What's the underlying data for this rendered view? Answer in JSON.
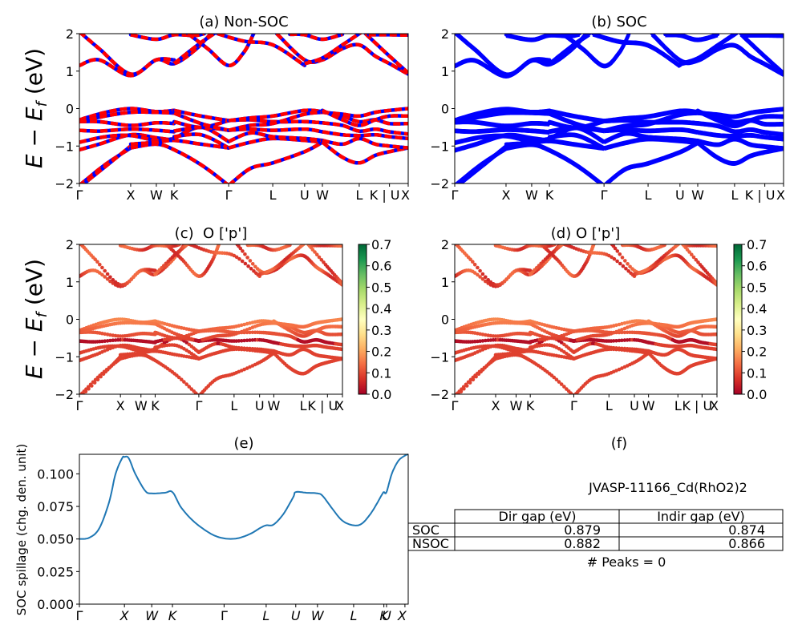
{
  "figure": {
    "material": "JVASP-11166_Cd(RhO2)2"
  },
  "chart_data": [
    {
      "id": "a",
      "type": "line",
      "title": "(a) Non-SOC",
      "ylabel": "E − E_f (eV)",
      "ylabel_main": "E − E",
      "ylabel_sub": "f",
      "ylabel_unit": " (eV)",
      "ylim": [
        -2,
        2
      ],
      "yticks": [
        "2",
        "1",
        "0",
        "−1",
        "−2"
      ],
      "ytick_values": [
        2,
        1,
        0,
        -1,
        -2
      ],
      "kpath_labels": [
        "Γ",
        "X",
        "W",
        "K",
        "Γ",
        "L",
        "U",
        "W",
        "L",
        "K | U",
        "X"
      ],
      "kpath_positions": [
        0,
        0.156,
        0.234,
        0.288,
        0.454,
        0.588,
        0.685,
        0.739,
        0.851,
        0.943,
        1.0
      ],
      "series_colors": [
        "#ff0000",
        "#0000ff"
      ],
      "style": "dashed red over blue",
      "bands": [
        {
          "x": [
            0,
            0.078,
            0.156
          ],
          "y": [
            -2.05,
            -1.5,
            -1.05
          ]
        },
        {
          "x": [
            0,
            0.1,
            0.156
          ],
          "y": [
            -2.1,
            -1.4,
            -1.0
          ]
        },
        {
          "x": [
            0,
            0.06,
            0.156,
            0.234,
            0.288
          ],
          "y": [
            -1.1,
            -0.95,
            -0.7,
            -0.78,
            -0.85
          ]
        },
        {
          "x": [
            0,
            0.08,
            0.156,
            0.234,
            0.288
          ],
          "y": [
            -0.9,
            -0.75,
            -0.72,
            -0.85,
            -0.8
          ]
        },
        {
          "x": [
            0,
            0.06,
            0.156,
            0.234,
            0.288
          ],
          "y": [
            -0.58,
            -0.6,
            -0.55,
            -0.58,
            -0.62
          ]
        },
        {
          "x": [
            0,
            0.06,
            0.156,
            0.234,
            0.288
          ],
          "y": [
            -0.35,
            -0.35,
            -0.45,
            -0.38,
            -0.4
          ]
        },
        {
          "x": [
            0,
            0.08,
            0.156,
            0.234,
            0.288
          ],
          "y": [
            -0.3,
            -0.1,
            0.0,
            -0.08,
            -0.05
          ]
        },
        {
          "x": [
            0,
            0.078,
            0.156,
            0.234,
            0.288
          ],
          "y": [
            -0.35,
            -0.2,
            -0.1,
            -0.1,
            -0.12
          ]
        },
        {
          "x": [
            0.156,
            0.234,
            0.288,
            0.37,
            0.454
          ],
          "y": [
            -1.05,
            -0.95,
            -1.1,
            -1.5,
            -2.05
          ]
        },
        {
          "x": [
            0.156,
            0.234,
            0.288,
            0.37,
            0.454
          ],
          "y": [
            -0.95,
            -0.9,
            -0.85,
            -0.95,
            -1.05
          ]
        },
        {
          "x": [
            0.288,
            0.37,
            0.454
          ],
          "y": [
            -0.8,
            -0.5,
            -0.88
          ]
        },
        {
          "x": [
            0.288,
            0.37,
            0.454
          ],
          "y": [
            -0.6,
            -0.5,
            -0.58
          ]
        },
        {
          "x": [
            0.288,
            0.37,
            0.454
          ],
          "y": [
            -0.35,
            -0.5,
            -0.32
          ]
        },
        {
          "x": [
            0.288,
            0.37,
            0.454
          ],
          "y": [
            -0.05,
            -0.2,
            -0.32
          ]
        },
        {
          "x": [
            0.288,
            0.37,
            0.454
          ],
          "y": [
            -0.12,
            -0.4,
            -0.58
          ]
        },
        {
          "x": [
            0.288,
            0.37,
            0.454
          ],
          "y": [
            -0.75,
            -0.7,
            -1.05
          ]
        },
        {
          "x": [
            0.454,
            0.52,
            0.588,
            0.685,
            0.739
          ],
          "y": [
            -2.05,
            -1.6,
            -1.45,
            -1.15,
            -0.9
          ]
        },
        {
          "x": [
            0.454,
            0.52,
            0.588,
            0.685,
            0.739
          ],
          "y": [
            -1.05,
            -0.9,
            -0.8,
            -0.85,
            -0.9
          ]
        },
        {
          "x": [
            0.454,
            0.52,
            0.588,
            0.685,
            0.739
          ],
          "y": [
            -0.88,
            -0.65,
            -0.75,
            -0.8,
            -0.85
          ]
        },
        {
          "x": [
            0.454,
            0.52,
            0.588,
            0.685,
            0.739
          ],
          "y": [
            -0.58,
            -0.55,
            -0.58,
            -0.55,
            -0.62
          ]
        },
        {
          "x": [
            0.454,
            0.52,
            0.588,
            0.685,
            0.739
          ],
          "y": [
            -0.32,
            -0.3,
            -0.35,
            -0.35,
            -0.38
          ]
        },
        {
          "x": [
            0.454,
            0.52,
            0.588,
            0.685,
            0.739
          ],
          "y": [
            -0.32,
            -0.25,
            -0.2,
            -0.05,
            -0.08
          ]
        },
        {
          "x": [
            0.454,
            0.52,
            0.588,
            0.685,
            0.739
          ],
          "y": [
            -0.58,
            -0.45,
            -0.4,
            -0.15,
            -0.1
          ]
        },
        {
          "x": [
            0.739,
            0.8,
            0.851,
            0.9,
            0.943,
            1.0
          ],
          "y": [
            -0.9,
            -1.3,
            -1.45,
            -1.25,
            -1.15,
            -1.05
          ]
        },
        {
          "x": [
            0.739,
            0.8,
            0.851,
            0.9,
            0.943,
            1.0
          ],
          "y": [
            -0.85,
            -0.95,
            -0.8,
            -0.95,
            -1.0,
            -1.05
          ]
        },
        {
          "x": [
            0.739,
            0.8,
            0.851,
            0.9,
            0.943,
            1.0
          ],
          "y": [
            -0.62,
            -0.7,
            -0.72,
            -0.7,
            -0.75,
            -0.8
          ]
        },
        {
          "x": [
            0.739,
            0.8,
            0.851,
            0.9,
            0.943,
            1.0
          ],
          "y": [
            -0.38,
            -0.45,
            -0.6,
            -0.55,
            -0.62,
            -0.68
          ]
        },
        {
          "x": [
            0.739,
            0.8,
            0.851,
            0.9,
            0.943,
            1.0
          ],
          "y": [
            -0.08,
            -0.2,
            -0.35,
            -0.3,
            -0.4,
            -0.4
          ]
        },
        {
          "x": [
            0.739,
            0.8,
            0.851,
            0.9,
            0.943,
            1.0
          ],
          "y": [
            -0.1,
            -0.15,
            -0.2,
            -0.1,
            -0.05,
            0.0
          ]
        },
        {
          "x": [
            0.739,
            0.8,
            0.851,
            0.9,
            0.943,
            1.0
          ],
          "y": [
            -0.05,
            -0.3,
            -0.45,
            -0.3,
            -0.2,
            -0.2
          ]
        },
        {
          "x": [
            0,
            0.06,
            0.156,
            0.234,
            0.288,
            0.35,
            0.4
          ],
          "y": [
            1.15,
            1.3,
            0.88,
            1.3,
            1.2,
            1.55,
            2.0
          ]
        },
        {
          "x": [
            0,
            0.06,
            0.156,
            0.234,
            0.288
          ],
          "y": [
            2.05,
            1.6,
            0.92,
            1.3,
            1.3
          ]
        },
        {
          "x": [
            0.156,
            0.234,
            0.288,
            0.35,
            0.38
          ],
          "y": [
            1.97,
            1.85,
            1.97,
            1.95,
            2.0
          ]
        },
        {
          "x": [
            0.288,
            0.36,
            0.41
          ],
          "y": [
            1.2,
            1.7,
            2.0
          ]
        },
        {
          "x": [
            0.33,
            0.39,
            0.454,
            0.5,
            0.53
          ],
          "y": [
            2.0,
            1.6,
            1.15,
            1.5,
            2.0
          ]
        },
        {
          "x": [
            0.42,
            0.5,
            0.588,
            0.685
          ],
          "y": [
            2.0,
            1.8,
            1.7,
            1.15
          ]
        },
        {
          "x": [
            0.6,
            0.685,
            0.739,
            0.8,
            0.851,
            0.9,
            0.943,
            1.0
          ],
          "y": [
            2.0,
            1.3,
            1.3,
            1.6,
            1.7,
            1.4,
            1.2,
            0.92
          ]
        },
        {
          "x": [
            0.685,
            0.739,
            0.8,
            0.86
          ],
          "y": [
            1.2,
            1.35,
            1.7,
            2.05
          ]
        },
        {
          "x": [
            0.64,
            0.685,
            0.739,
            0.8
          ],
          "y": [
            1.98,
            1.97,
            1.85,
            1.98
          ]
        },
        {
          "x": [
            0.87,
            0.943,
            1.0
          ],
          "y": [
            2.0,
            1.4,
            0.95
          ]
        },
        {
          "x": [
            0.88,
            0.943,
            1.0
          ],
          "y": [
            1.97,
            1.97,
            1.96
          ]
        }
      ]
    },
    {
      "id": "b",
      "type": "line",
      "title": "(b) SOC",
      "ylim": [
        -2,
        2
      ],
      "yticks": [
        "2",
        "1",
        "0",
        "−1",
        "−2"
      ],
      "ytick_values": [
        2,
        1,
        0,
        -1,
        -2
      ],
      "kpath_labels": [
        "Γ",
        "X",
        "W",
        "K",
        "Γ",
        "L",
        "U",
        "W",
        "L",
        "K | U",
        "X"
      ],
      "kpath_positions": [
        0,
        0.156,
        0.234,
        0.288,
        0.454,
        0.588,
        0.685,
        0.739,
        0.851,
        0.943,
        1.0
      ],
      "series_colors": [
        "#0000ff"
      ],
      "bands_from": "a"
    },
    {
      "id": "c",
      "type": "scatter",
      "title": "(c)  O ['p']",
      "ylabel_main": "E − E",
      "ylabel_sub": "f",
      "ylabel_unit": " (eV)",
      "ylim": [
        -2,
        2
      ],
      "yticks": [
        "2",
        "1",
        "0",
        "−1",
        "−2"
      ],
      "ytick_values": [
        2,
        1,
        0,
        -1,
        -2
      ],
      "kpath_labels": [
        "Γ",
        "X",
        "W",
        "K",
        "Γ",
        "L",
        "U",
        "W",
        "L",
        "K | U",
        "X"
      ],
      "kpath_positions": [
        0,
        0.156,
        0.234,
        0.288,
        0.454,
        0.588,
        0.685,
        0.739,
        0.851,
        0.943,
        1.0
      ],
      "colorbar": {
        "cmap": "RdYlGn",
        "range": [
          0.0,
          0.7
        ],
        "ticks": [
          "0.0",
          "0.1",
          "0.2",
          "0.3",
          "0.4",
          "0.5",
          "0.6",
          "0.7"
        ],
        "tick_values": [
          0.0,
          0.1,
          0.2,
          0.3,
          0.4,
          0.5,
          0.6,
          0.7
        ]
      },
      "weight_range": [
        0.0,
        0.25
      ],
      "bands_from": "a"
    },
    {
      "id": "d",
      "type": "scatter",
      "title": "(d) O ['p']",
      "ylim": [
        -2,
        2
      ],
      "yticks": [
        "2",
        "1",
        "0",
        "−1",
        "−2"
      ],
      "ytick_values": [
        2,
        1,
        0,
        -1,
        -2
      ],
      "kpath_labels": [
        "Γ",
        "X",
        "W",
        "K",
        "Γ",
        "L",
        "U",
        "W",
        "L",
        "K | U",
        "X"
      ],
      "kpath_positions": [
        0,
        0.156,
        0.234,
        0.288,
        0.454,
        0.588,
        0.685,
        0.739,
        0.851,
        0.943,
        1.0
      ],
      "colorbar": {
        "cmap": "RdYlGn",
        "range": [
          0.0,
          0.7
        ],
        "ticks": [
          "0.0",
          "0.1",
          "0.2",
          "0.3",
          "0.4",
          "0.5",
          "0.6",
          "0.7"
        ],
        "tick_values": [
          0.0,
          0.1,
          0.2,
          0.3,
          0.4,
          0.5,
          0.6,
          0.7
        ]
      },
      "weight_range": [
        0.0,
        0.25
      ],
      "bands_from": "a"
    },
    {
      "id": "e",
      "type": "line",
      "title": "(e)",
      "ylabel": "SOC spillage (chg. den. unit)",
      "ylim": [
        0,
        0.115
      ],
      "yticks": [
        "0.000",
        "0.025",
        "0.050",
        "0.075",
        "0.100"
      ],
      "ytick_values": [
        0.0,
        0.025,
        0.05,
        0.075,
        0.1
      ],
      "kpath_labels": [
        "Γ",
        "X",
        "W",
        "K",
        "Γ",
        "L",
        "U",
        "W",
        "L",
        "K",
        "U",
        "X"
      ],
      "kpath_positions": [
        0,
        0.137,
        0.22,
        0.283,
        0.44,
        0.568,
        0.658,
        0.724,
        0.834,
        0.926,
        0.934,
        0.99
      ],
      "line_color": "#1f77b4",
      "x": [
        0,
        0.03,
        0.06,
        0.09,
        0.11,
        0.13,
        0.137,
        0.15,
        0.17,
        0.2,
        0.22,
        0.26,
        0.283,
        0.31,
        0.35,
        0.4,
        0.44,
        0.48,
        0.52,
        0.55,
        0.568,
        0.59,
        0.62,
        0.65,
        0.658,
        0.69,
        0.724,
        0.74,
        0.77,
        0.8,
        0.834,
        0.86,
        0.89,
        0.92,
        0.926,
        0.934,
        0.95,
        0.97,
        0.99,
        1.0
      ],
      "y": [
        0.05,
        0.051,
        0.058,
        0.078,
        0.1,
        0.112,
        0.113,
        0.112,
        0.1,
        0.087,
        0.085,
        0.0855,
        0.086,
        0.074,
        0.063,
        0.054,
        0.0505,
        0.0505,
        0.054,
        0.0585,
        0.0605,
        0.061,
        0.069,
        0.082,
        0.086,
        0.0855,
        0.085,
        0.083,
        0.073,
        0.064,
        0.0605,
        0.062,
        0.071,
        0.084,
        0.086,
        0.086,
        0.1,
        0.11,
        0.114,
        0.115
      ]
    },
    {
      "id": "f",
      "type": "table",
      "title": "(f)",
      "subtitle": "JVASP-11166_Cd(RhO2)2",
      "columns": [
        "",
        "Dir gap (eV)",
        "Indir gap (eV)"
      ],
      "rows": [
        {
          "label": "SOC",
          "dir_gap": "0.879",
          "indir_gap": "0.874"
        },
        {
          "label": "NSOC",
          "dir_gap": "0.882",
          "indir_gap": "0.866"
        }
      ],
      "footer": "# Peaks = 0"
    }
  ]
}
